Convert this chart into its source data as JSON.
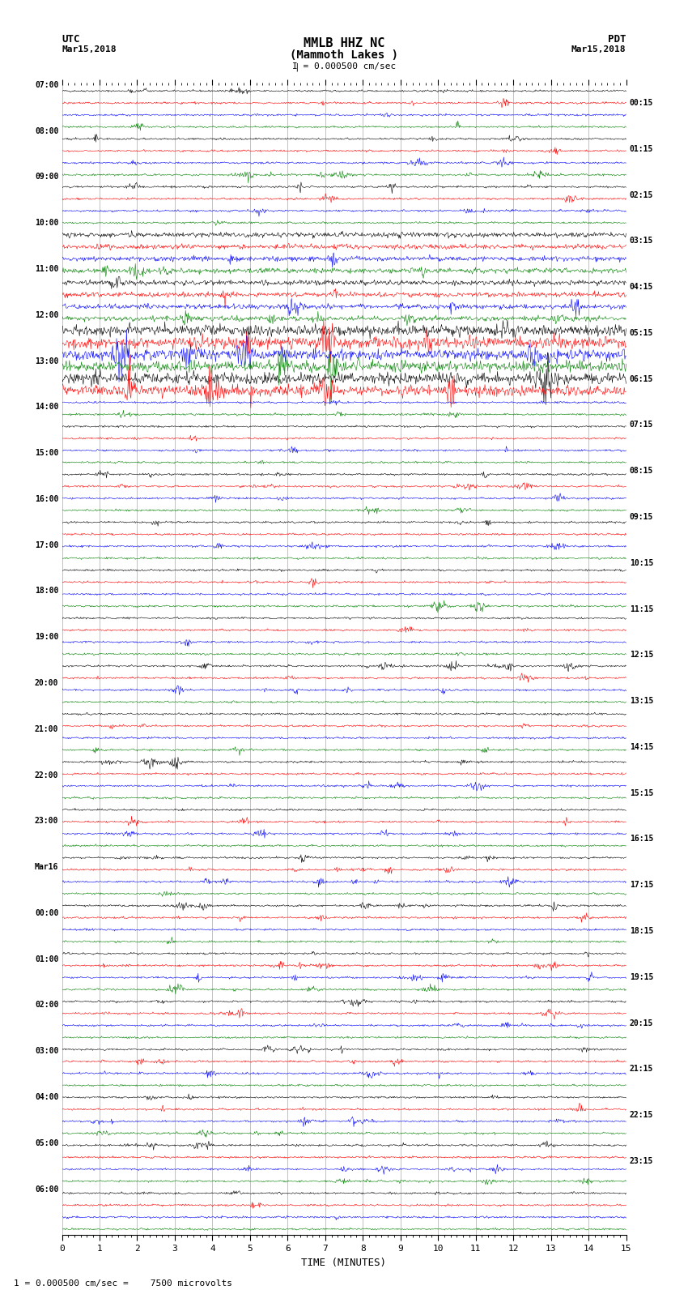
{
  "title_line1": "MMLB HHZ NC",
  "title_line2": "(Mammoth Lakes )",
  "scale_label": "I = 0.000500 cm/sec",
  "bottom_label": "1 = 0.000500 cm/sec =    7500 microvolts",
  "utc_label": "UTC",
  "pdt_label": "PDT",
  "date_left": "Mar15,2018",
  "date_right": "Mar15,2018",
  "xlabel": "TIME (MINUTES)",
  "left_times_utc": [
    "07:00",
    "08:00",
    "09:00",
    "10:00",
    "11:00",
    "12:00",
    "13:00",
    "14:00",
    "15:00",
    "16:00",
    "17:00",
    "18:00",
    "19:00",
    "20:00",
    "21:00",
    "22:00",
    "23:00",
    "Mar16",
    "00:00",
    "01:00",
    "02:00",
    "03:00",
    "04:00",
    "05:00",
    "06:00"
  ],
  "right_times_pdt": [
    "00:15",
    "01:15",
    "02:15",
    "03:15",
    "04:15",
    "05:15",
    "06:15",
    "07:15",
    "08:15",
    "09:15",
    "10:15",
    "11:15",
    "12:15",
    "13:15",
    "14:15",
    "15:15",
    "16:15",
    "17:15",
    "18:15",
    "19:15",
    "20:15",
    "21:15",
    "22:15",
    "23:15"
  ],
  "colors": [
    "black",
    "red",
    "blue",
    "green"
  ],
  "n_rows": 96,
  "n_traces_per_hour": 4,
  "time_minutes": 15,
  "background_color": "white",
  "grid_color": "#aaaaaa",
  "fig_width": 8.5,
  "fig_height": 16.13
}
